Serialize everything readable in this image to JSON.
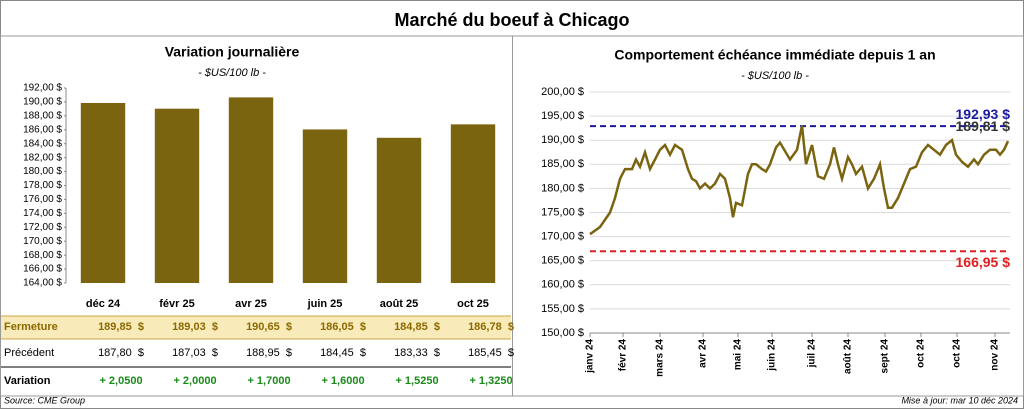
{
  "title": "Marché du boeuf à Chicago",
  "chart_data": [
    {
      "type": "bar",
      "title": "Variation journalière",
      "subtitle": "- $US/100 lb -",
      "categories": [
        "déc 24",
        "févr 25",
        "avr 25",
        "juin 25",
        "août 25",
        "oct 25"
      ],
      "values": [
        189.85,
        189.03,
        190.65,
        186.05,
        184.85,
        186.78
      ],
      "color": "#7a6410",
      "ylim": [
        164,
        192
      ],
      "yticks": [
        {
          "value": 164,
          "label": "164,00 $"
        },
        {
          "value": 166,
          "label": "166,00 $"
        },
        {
          "value": 168,
          "label": "168,00 $"
        },
        {
          "value": 170,
          "label": "170,00 $"
        },
        {
          "value": 172,
          "label": "172,00 $"
        },
        {
          "value": 174,
          "label": "174,00 $"
        },
        {
          "value": 176,
          "label": "176,00 $"
        },
        {
          "value": 178,
          "label": "178,00 $"
        },
        {
          "value": 180,
          "label": "180,00 $"
        },
        {
          "value": 182,
          "label": "182,00 $"
        },
        {
          "value": 184,
          "label": "184,00 $"
        },
        {
          "value": 186,
          "label": "186,00 $"
        },
        {
          "value": 188,
          "label": "188,00 $"
        },
        {
          "value": 190,
          "label": "190,00 $"
        },
        {
          "value": 192,
          "label": "192,00 $"
        }
      ],
      "grid": false
    },
    {
      "type": "line",
      "title": "Comportement échéance immédiate depuis 1 an",
      "subtitle": "- $US/100 lb -",
      "xlim": [
        0,
        420
      ],
      "xticks": [
        {
          "value": 0,
          "label": "janv 24"
        },
        {
          "value": 33,
          "label": "févr 24"
        },
        {
          "value": 70,
          "label": "mars 24"
        },
        {
          "value": 113,
          "label": "avr 24"
        },
        {
          "value": 148,
          "label": "mai 24"
        },
        {
          "value": 182,
          "label": "juin 24"
        },
        {
          "value": 222,
          "label": "juil 24"
        },
        {
          "value": 258,
          "label": "août 24"
        },
        {
          "value": 295,
          "label": "sept 24"
        },
        {
          "value": 331,
          "label": "oct 24"
        },
        {
          "value": 367,
          "label": "oct 24"
        },
        {
          "value": 405,
          "label": "nov 24"
        }
      ],
      "ylim": [
        150,
        200
      ],
      "yticks": [
        {
          "value": 150,
          "label": "150,00 $"
        },
        {
          "value": 155,
          "label": "155,00 $"
        },
        {
          "value": 160,
          "label": "160,00 $"
        },
        {
          "value": 165,
          "label": "165,00 $"
        },
        {
          "value": 170,
          "label": "170,00 $"
        },
        {
          "value": 175,
          "label": "175,00 $"
        },
        {
          "value": 180,
          "label": "180,00 $"
        },
        {
          "value": 185,
          "label": "185,00 $"
        },
        {
          "value": 190,
          "label": "190,00 $"
        },
        {
          "value": 195,
          "label": "195,00 $"
        },
        {
          "value": 200,
          "label": "200,00 $"
        }
      ],
      "grid": true,
      "series": [
        {
          "color": "#7a6410",
          "x": [
            0,
            10,
            20,
            25,
            30,
            35,
            42,
            46,
            50,
            55,
            60,
            65,
            70,
            75,
            80,
            85,
            92,
            98,
            102,
            106,
            110,
            115,
            120,
            125,
            130,
            135,
            140,
            143,
            146,
            152,
            158,
            162,
            166,
            172,
            176,
            180,
            186,
            190,
            200,
            207,
            212,
            216,
            222,
            228,
            234,
            240,
            244,
            248,
            252,
            258,
            262,
            266,
            272,
            278,
            284,
            290,
            294,
            298,
            302,
            308,
            314,
            320,
            326,
            332,
            338,
            344,
            350,
            356,
            362,
            366,
            372,
            378,
            384,
            388,
            394,
            400,
            406,
            410,
            414,
            418
          ],
          "values": [
            170.5,
            172,
            175,
            178,
            182,
            184,
            184,
            186,
            184.5,
            187.5,
            184,
            186,
            188,
            189,
            187,
            189,
            188,
            184,
            182,
            181.5,
            180,
            181,
            180,
            181,
            183,
            182,
            178,
            174,
            177,
            176.5,
            183,
            185,
            185,
            184,
            183.5,
            185,
            188.5,
            189.5,
            186,
            188,
            193,
            185,
            189,
            182.5,
            182,
            185,
            188.5,
            185,
            182,
            186.5,
            185,
            183,
            184.5,
            180,
            182,
            185,
            180,
            176,
            176,
            178,
            181,
            184,
            184.5,
            187.5,
            189,
            188,
            187,
            189,
            190,
            187,
            185.5,
            184.5,
            186,
            185,
            187,
            188,
            188,
            187,
            188,
            189.8
          ]
        }
      ],
      "reference_lines": [
        {
          "value": 192.93,
          "label": "192,93 $",
          "color": "#1a1aa0"
        },
        {
          "value": 166.95,
          "label": "166,95 $",
          "color": "#e02020"
        }
      ],
      "last_label": "189,81 $"
    }
  ],
  "table": {
    "rows": [
      {
        "label": "Fermeture",
        "cells": [
          "189,85  $",
          "189,03  $",
          "190,65  $",
          "186,05  $",
          "184,85  $",
          "186,78  $"
        ]
      },
      {
        "label": "Précédent",
        "cells": [
          "187,80  $",
          "187,03  $",
          "188,95  $",
          "184,45  $",
          "183,33  $",
          "185,45  $"
        ]
      },
      {
        "label": "Variation",
        "cells": [
          "+ 2,0500",
          "+ 2,0000",
          "+ 1,7000",
          "+ 1,6000",
          "+ 1,5250",
          "+ 1,3250"
        ]
      }
    ]
  },
  "source": "Source: CME Group",
  "updated": "Mise à jour: mar 10 déc 2024"
}
